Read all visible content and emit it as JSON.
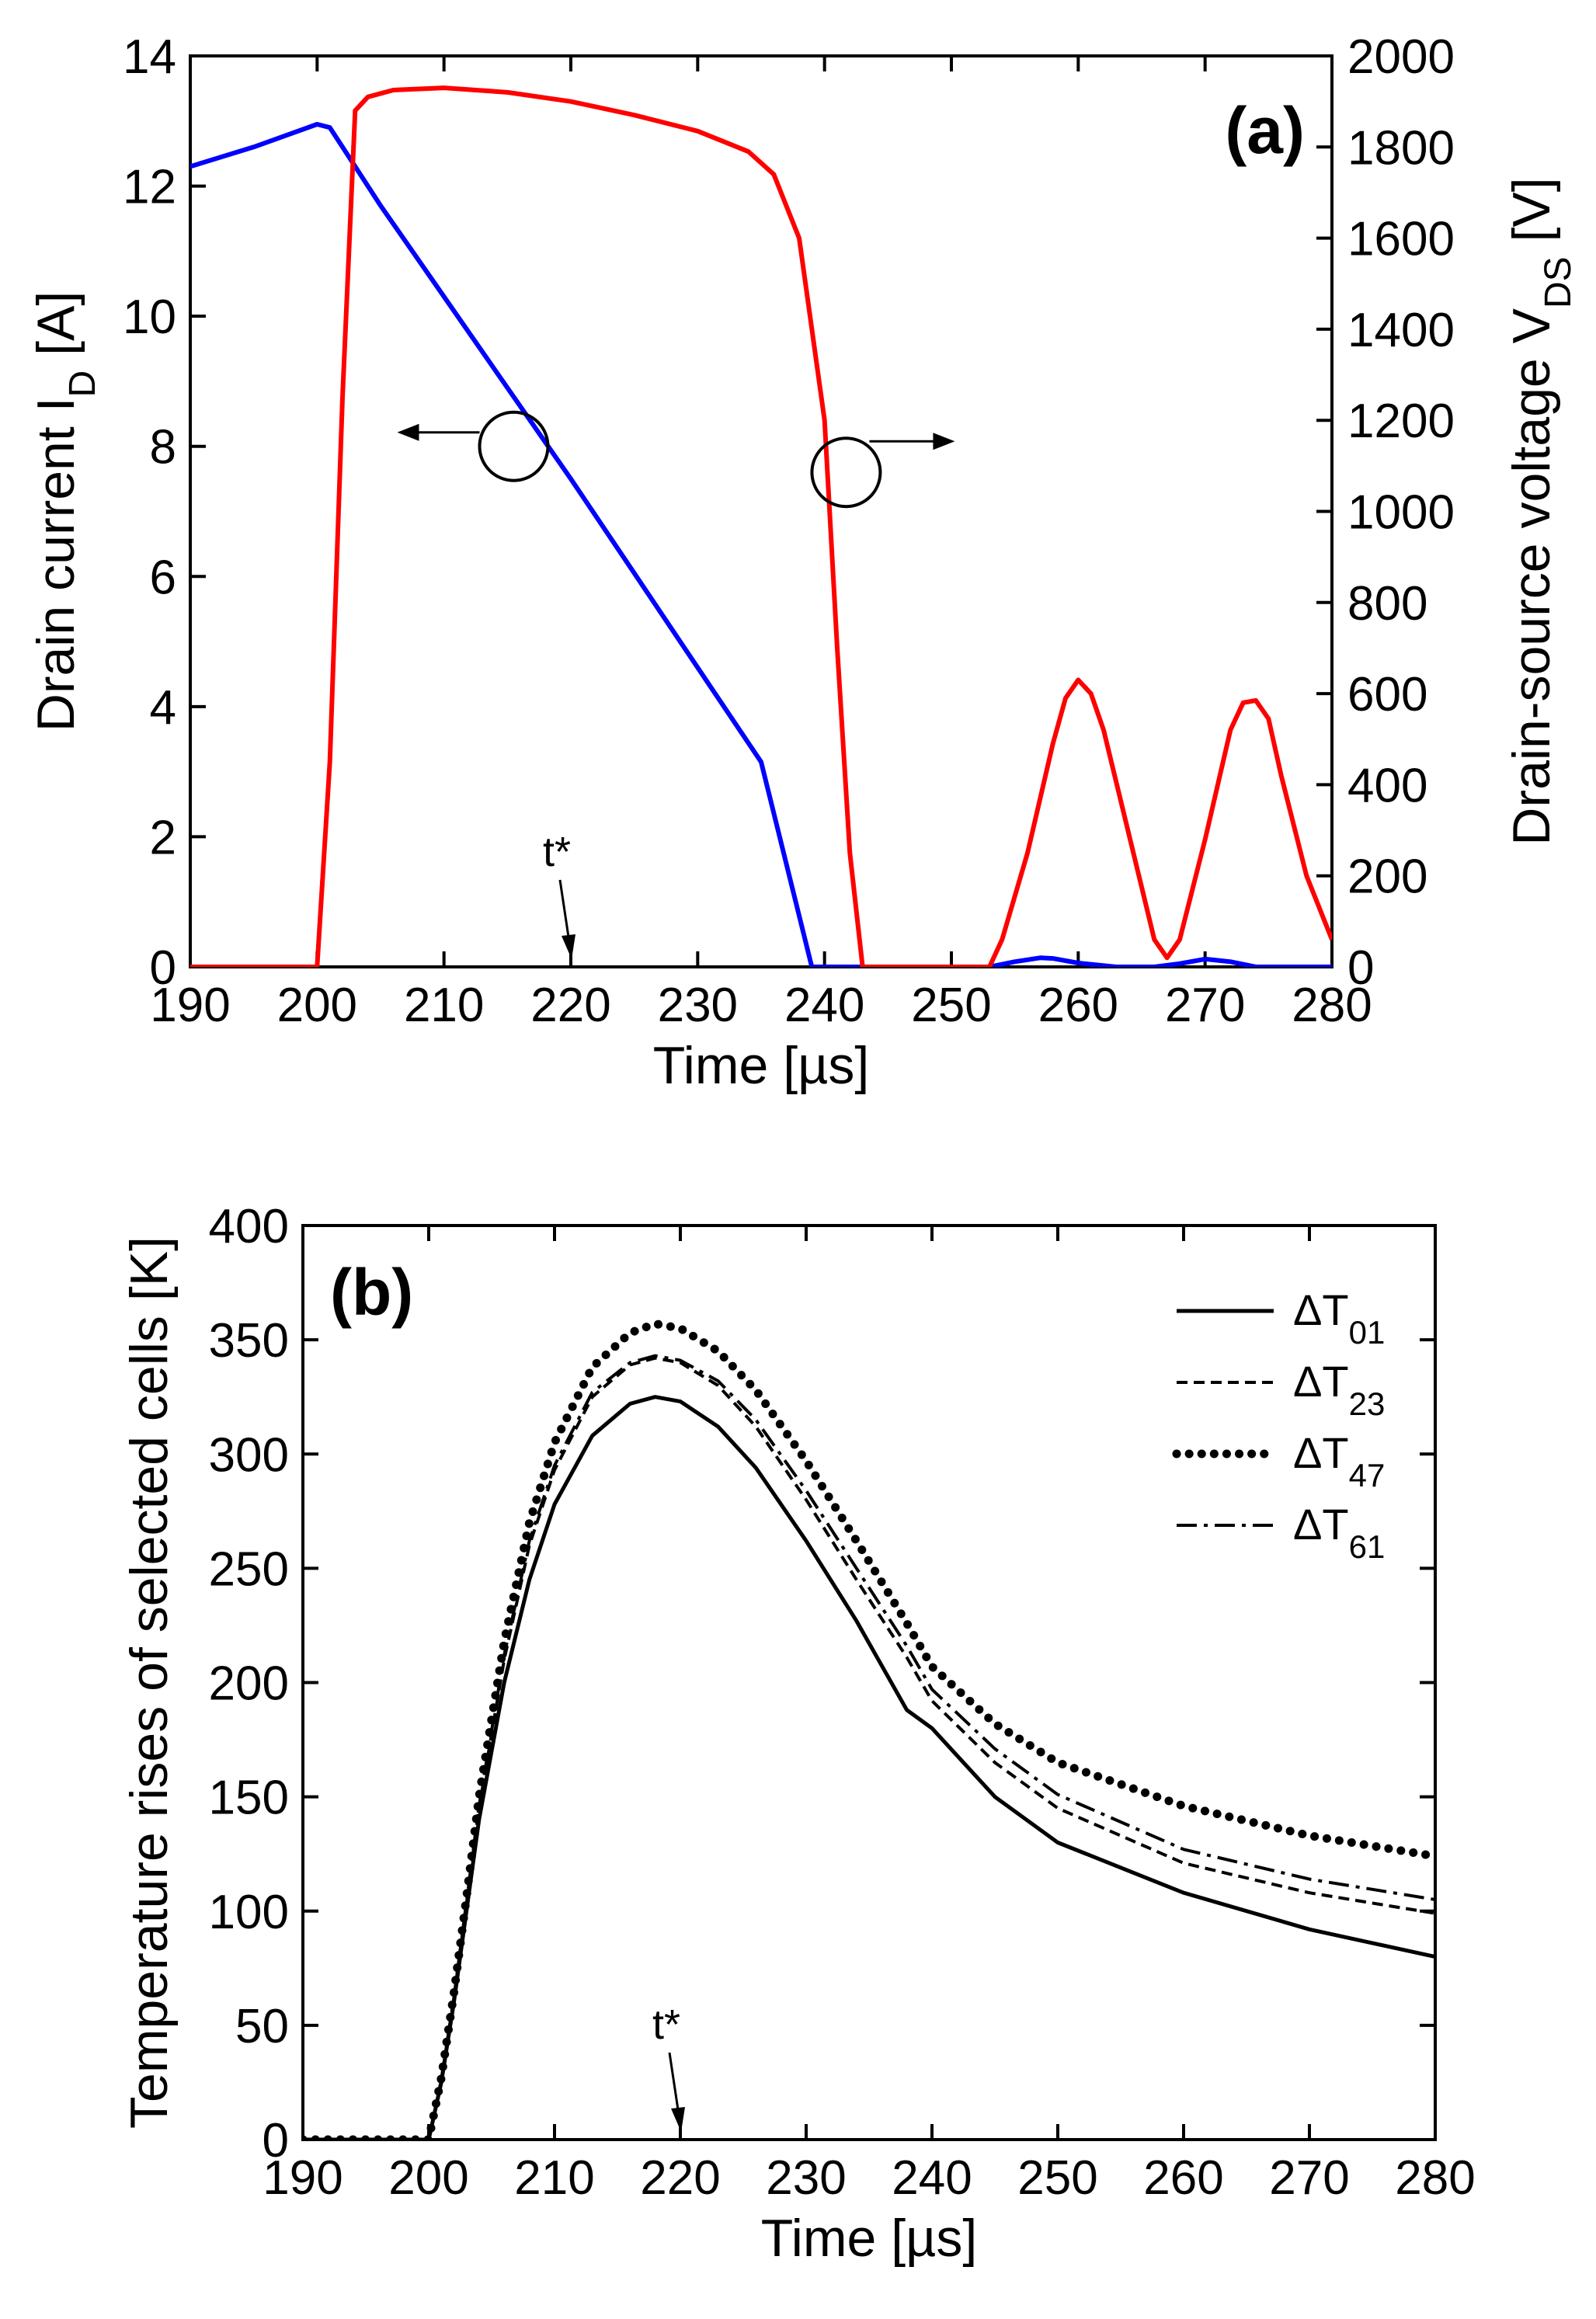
{
  "chart_data": [
    {
      "panel": "(a)",
      "type": "line",
      "xlabel": "Time [µs]",
      "ylabel": "Drain current I_D [A]",
      "ylabel_parts": {
        "main": "Drain current I",
        "sub": "D",
        "unit": " [A]"
      },
      "y2label": "Drain-source voltage V_DS [V]",
      "y2label_parts": {
        "main": "Drain-source voltage V",
        "sub": "DS",
        "unit": " [V]"
      },
      "xlim": [
        190,
        280
      ],
      "ylim": [
        0,
        14
      ],
      "y2lim": [
        0,
        2000
      ],
      "xticks": [
        190,
        200,
        210,
        220,
        230,
        240,
        250,
        260,
        270,
        280
      ],
      "yticks": [
        0,
        2,
        4,
        6,
        8,
        10,
        12,
        14
      ],
      "y2ticks": [
        0,
        200,
        400,
        600,
        800,
        1000,
        1200,
        1400,
        1600,
        1800,
        2000
      ],
      "annotation": "t*",
      "annotation_x": 220,
      "series": [
        {
          "axis": "left",
          "color": "#0000ff",
          "x": [
            190,
            195,
            200,
            201,
            202,
            205,
            210,
            215,
            220,
            225,
            230,
            235,
            239,
            240,
            245,
            250,
            253,
            255,
            257,
            258,
            260,
            263,
            266,
            268,
            270,
            272,
            274,
            276,
            280
          ],
          "y": [
            12.3,
            12.6,
            12.95,
            12.9,
            12.6,
            11.7,
            10.3,
            8.9,
            7.5,
            6.05,
            4.6,
            3.15,
            0,
            0,
            0,
            0,
            0,
            0.08,
            0.14,
            0.13,
            0.06,
            0,
            0,
            0.05,
            0.12,
            0.08,
            0,
            0,
            0
          ]
        },
        {
          "axis": "right",
          "color": "#ff0000",
          "x": [
            190,
            200,
            201,
            202,
            203,
            204,
            206,
            210,
            215,
            220,
            225,
            230,
            234,
            236,
            238,
            240,
            241,
            242,
            243,
            244,
            250,
            253,
            254,
            256,
            258,
            259,
            260,
            261,
            262,
            264,
            266,
            267,
            268,
            270,
            272,
            273,
            274,
            275,
            276,
            278,
            280
          ],
          "y": [
            0,
            0,
            450,
            1250,
            1880,
            1910,
            1925,
            1930,
            1920,
            1900,
            1870,
            1835,
            1790,
            1740,
            1600,
            1200,
            700,
            250,
            0,
            0,
            0,
            0,
            60,
            250,
            490,
            590,
            630,
            600,
            520,
            290,
            60,
            20,
            60,
            280,
            520,
            580,
            585,
            545,
            420,
            200,
            60
          ]
        }
      ]
    },
    {
      "panel": "(b)",
      "type": "line",
      "xlabel": "Time [µs]",
      "ylabel": "Temperature rises of selected cells [K]",
      "xlim": [
        190,
        280
      ],
      "ylim": [
        0,
        400
      ],
      "xticks": [
        190,
        200,
        210,
        220,
        230,
        240,
        250,
        260,
        270,
        280
      ],
      "yticks": [
        0,
        50,
        100,
        150,
        200,
        250,
        300,
        350,
        400
      ],
      "annotation": "t*",
      "annotation_x": 220,
      "legend_location": "top-right",
      "series": [
        {
          "name": "ΔT01",
          "name_parts": {
            "main": "ΔT",
            "sub": "01"
          },
          "style": "solid",
          "x": [
            190,
            200,
            201,
            202,
            203,
            204,
            206,
            208,
            210,
            213,
            216,
            218,
            220,
            223,
            226,
            230,
            234,
            238,
            240,
            245,
            250,
            260,
            270,
            280
          ],
          "y": [
            0,
            0,
            25,
            60,
            100,
            140,
            200,
            245,
            278,
            308,
            322,
            325,
            323,
            312,
            294,
            262,
            227,
            188,
            180,
            150,
            130,
            108,
            92,
            80
          ]
        },
        {
          "name": "ΔT23",
          "name_parts": {
            "main": "ΔT",
            "sub": "23"
          },
          "style": "dashed",
          "x": [
            190,
            200,
            201,
            202,
            203,
            204,
            206,
            208,
            210,
            213,
            216,
            218,
            220,
            223,
            226,
            230,
            234,
            238,
            240,
            245,
            250,
            260,
            270,
            280
          ],
          "y": [
            0,
            0,
            26,
            62,
            103,
            145,
            210,
            260,
            293,
            325,
            339,
            342,
            340,
            330,
            312,
            280,
            245,
            211,
            192,
            165,
            145,
            121,
            108,
            99
          ]
        },
        {
          "name": "ΔT47",
          "name_parts": {
            "main": "ΔT",
            "sub": "47"
          },
          "style": "dotted",
          "x": [
            190,
            200,
            201,
            202,
            203,
            204,
            206,
            208,
            210,
            213,
            216,
            218,
            220,
            223,
            226,
            230,
            234,
            238,
            240,
            245,
            250,
            260,
            270,
            280
          ],
          "y": [
            0,
            0,
            27,
            64,
            106,
            150,
            218,
            270,
            305,
            338,
            353,
            357,
            355,
            345,
            328,
            297,
            262,
            226,
            207,
            182,
            165,
            146,
            133,
            124
          ]
        },
        {
          "name": "ΔT61",
          "name_parts": {
            "main": "ΔT",
            "sub": "61"
          },
          "style": "dashdot",
          "x": [
            190,
            200,
            201,
            202,
            203,
            204,
            206,
            208,
            210,
            213,
            216,
            218,
            220,
            223,
            226,
            230,
            234,
            238,
            240,
            245,
            250,
            260,
            270,
            280
          ],
          "y": [
            0,
            0,
            26,
            62,
            104,
            146,
            212,
            262,
            295,
            327,
            340,
            343,
            341,
            332,
            315,
            284,
            250,
            216,
            197,
            171,
            151,
            127,
            114,
            105
          ]
        }
      ]
    }
  ]
}
